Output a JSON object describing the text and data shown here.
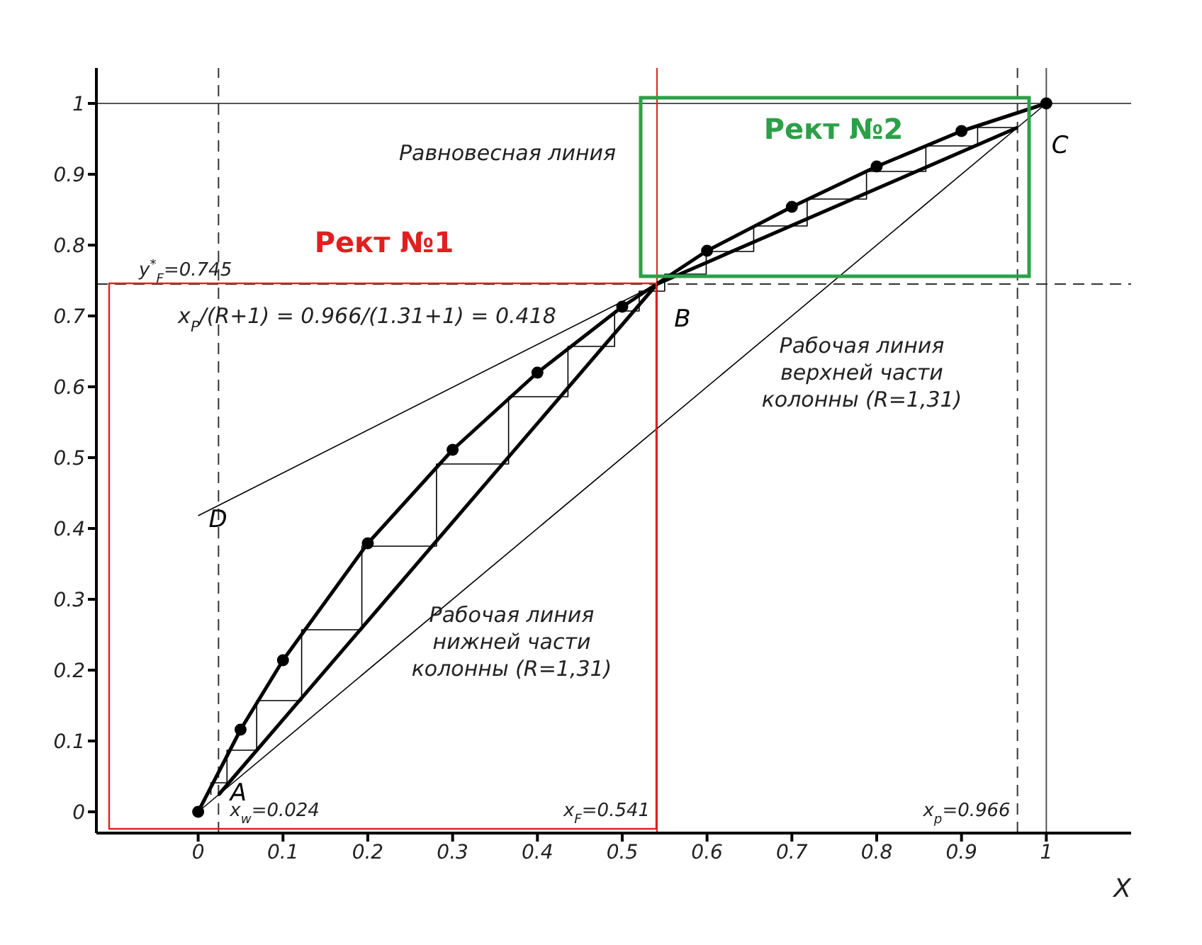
{
  "chart_data": {
    "type": "line",
    "xlabel": "X",
    "xlim": [
      -0.12,
      1.1
    ],
    "ylim": [
      -0.03,
      1.05
    ],
    "xticks": [
      0,
      0.1,
      0.2,
      0.3,
      0.4,
      0.5,
      0.6,
      0.7,
      0.8,
      0.9,
      1
    ],
    "yticks": [
      0,
      0.1,
      0.2,
      0.3,
      0.4,
      0.5,
      0.6,
      0.7,
      0.8,
      0.9,
      1
    ],
    "series": [
      {
        "color": "#000000",
        "marker": "circle",
        "x": [
          0,
          0.05,
          0.1,
          0.2,
          0.3,
          0.4,
          0.5,
          0.6,
          0.7,
          0.8,
          0.9,
          1
        ],
        "values": [
          0,
          0.116,
          0.214,
          0.379,
          0.511,
          0.62,
          0.713,
          0.792,
          0.854,
          0.911,
          0.961,
          1
        ]
      },
      {
        "color": "#000000",
        "x": [
          0.024,
          0.541
        ],
        "values": [
          0.024,
          0.745
        ]
      },
      {
        "color": "#000000",
        "x": [
          0.541,
          0.966
        ],
        "values": [
          0.745,
          0.966
        ]
      },
      {
        "color": "#000000",
        "x": [
          0,
          1
        ],
        "values": [
          0,
          1
        ]
      },
      {
        "color": "#000000",
        "x": [
          0,
          0.541
        ],
        "values": [
          0.418,
          0.745
        ]
      },
      {
        "color": "#000000",
        "x": [
          0.966,
          0.919,
          0.919,
          0.858,
          0.858,
          0.788,
          0.788,
          0.718,
          0.718,
          0.655,
          0.655,
          0.599,
          0.599,
          0.55,
          0.55,
          0.52,
          0.52,
          0.491,
          0.491,
          0.436,
          0.436,
          0.366,
          0.366,
          0.281,
          0.281,
          0.193,
          0.193,
          0.122,
          0.122,
          0.069,
          0.069,
          0.034,
          0.034,
          0.015,
          0.015
        ],
        "values": [
          0.966,
          0.966,
          0.94,
          0.94,
          0.904,
          0.904,
          0.865,
          0.865,
          0.827,
          0.827,
          0.791,
          0.791,
          0.759,
          0.759,
          0.735,
          0.735,
          0.707,
          0.707,
          0.657,
          0.657,
          0.586,
          0.586,
          0.491,
          0.491,
          0.375,
          0.375,
          0.257,
          0.257,
          0.157,
          0.157,
          0.087,
          0.087,
          0.041,
          0.041,
          0.024
        ]
      }
    ],
    "ref_lines": [
      {
        "axis": "y",
        "value": 1,
        "color": "#555555"
      },
      {
        "axis": "x",
        "value": 1,
        "color": "#555555"
      },
      {
        "axis": "x",
        "value": 0.966,
        "label": "x$_{p}$=0.966",
        "line_style": "dashed",
        "color": "#333333"
      },
      {
        "axis": "y",
        "value": 0.745,
        "label": "y$^{*}$$_{F}$=0.745",
        "line_style": "dashed",
        "color": "#333333"
      },
      {
        "axis": "x",
        "value": 0.541,
        "label": "x$_{F}$=0.541",
        "color": "#e02020"
      },
      {
        "axis": "x",
        "value": 0.024,
        "label": "x$_{w}$=0.024",
        "line_style": "dashed",
        "color": "#333333"
      }
    ],
    "annotations": [
      "Равновесная линия",
      "Рабочая линия\nверхней части\nколонны (R=1,31)",
      "Рабочая линия\nнижней части\nколонны (R=1,31)",
      "x$_{P}$/(R+1) = 0.966/(1.31+1) = 0.418",
      "Рект №1",
      "Рект №2",
      {
        "text": "A",
        "x": 0.024,
        "y": 0.024
      },
      {
        "text": "B",
        "x": 0.541,
        "y": 0.745
      },
      {
        "text": "C",
        "x": 0.966,
        "y": 0.966
      },
      {
        "text": "D",
        "x": 0,
        "y": 0.418
      }
    ]
  }
}
